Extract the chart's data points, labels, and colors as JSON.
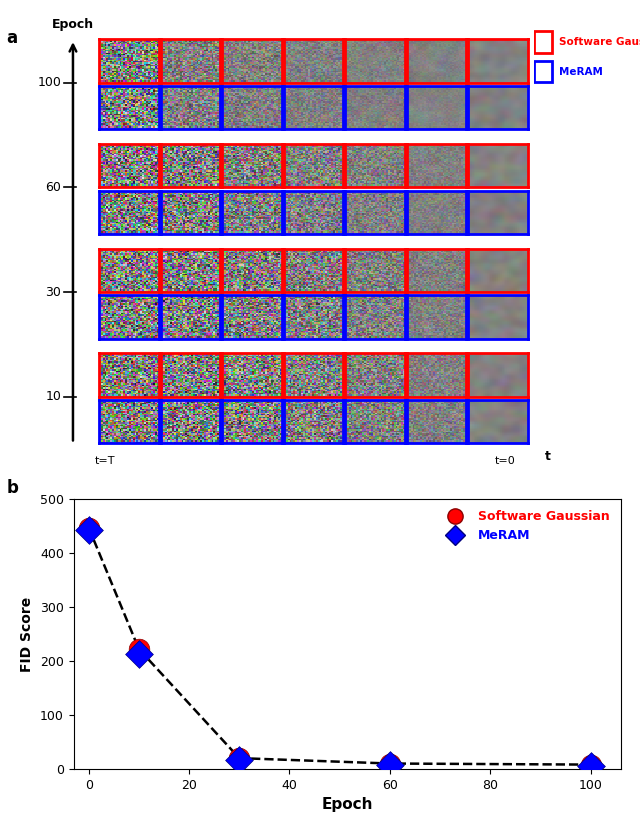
{
  "panel_a_label": "a",
  "panel_b_label": "b",
  "epochs": [
    0,
    10,
    30,
    60,
    100
  ],
  "fid_gaussian": [
    447,
    222,
    20,
    10,
    8
  ],
  "fid_meram": [
    443,
    212,
    17,
    8,
    6
  ],
  "xlabel": "Epoch",
  "ylabel": "FID Score",
  "ylim": [
    0,
    500
  ],
  "yticks": [
    0,
    100,
    200,
    300,
    400,
    500
  ],
  "xticks": [
    0,
    20,
    40,
    60,
    80,
    100
  ],
  "legend_gaussian": "Software Gaussian",
  "legend_meram": "MeRAM",
  "color_gaussian": "#FF0000",
  "color_meram": "#0000FF",
  "t_start": "t=T",
  "t_end": "t=0",
  "axis_label_t": "t",
  "axis_label_epoch": "Epoch",
  "epoch_groups": [
    100,
    60,
    30,
    10
  ],
  "num_cols": 7,
  "border_red": "#FF0000",
  "border_blue": "#0000FF",
  "img_size": 32
}
